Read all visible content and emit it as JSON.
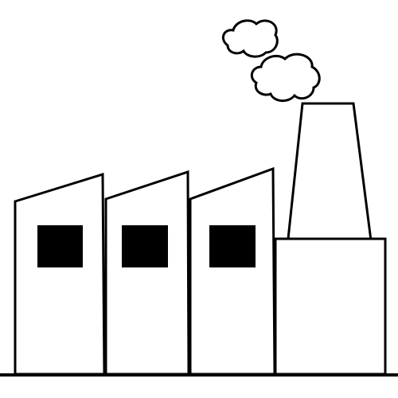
{
  "colors": {
    "background": "#ffffff",
    "outline": "#000000",
    "window": "#000000"
  },
  "icon": "factory-icon",
  "parts": {
    "buildings": 3,
    "windows": 3,
    "chimneys": 1,
    "smoke_clouds": 2
  }
}
